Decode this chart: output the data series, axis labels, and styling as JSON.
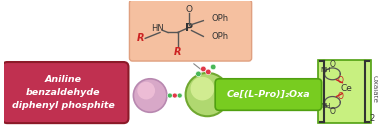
{
  "bg_color": "#ffffff",
  "product_box_color": "#f5c0a0",
  "product_box_edge": "#e0a080",
  "reactant_box_color": "#c03050",
  "reactant_box_edge": "#8b1a28",
  "catalyst_bar_color": "#78cc20",
  "catalyst_bar_edge": "#50a010",
  "catalyst_box_color": "#c8f080",
  "catalyst_box_edge": "#50a010",
  "small_sphere_color": "#d8a8c8",
  "small_sphere_inner": "#f0c0d8",
  "small_sphere_edge": "#b888b0",
  "large_sphere_color": "#b0d870",
  "large_sphere_inner": "#d8f098",
  "large_sphere_edge": "#70a830",
  "dot_colors_h": [
    "#48b858",
    "#e03848",
    "#48b858"
  ],
  "dot_colors_v": [
    "#48b858",
    "#e03848",
    "#e03848",
    "#48b858"
  ],
  "reactant_text": [
    "Aniline",
    "benzaldehyde",
    "diphenyl phosphite"
  ],
  "catalyst_text": "Ce[(L-Pro)]₂Oxa",
  "oxalate_label": "Oxalate",
  "subscript_2": "2",
  "bond_color": "#555555",
  "text_color": "#333333",
  "red_color": "#cc2222",
  "white": "#ffffff"
}
